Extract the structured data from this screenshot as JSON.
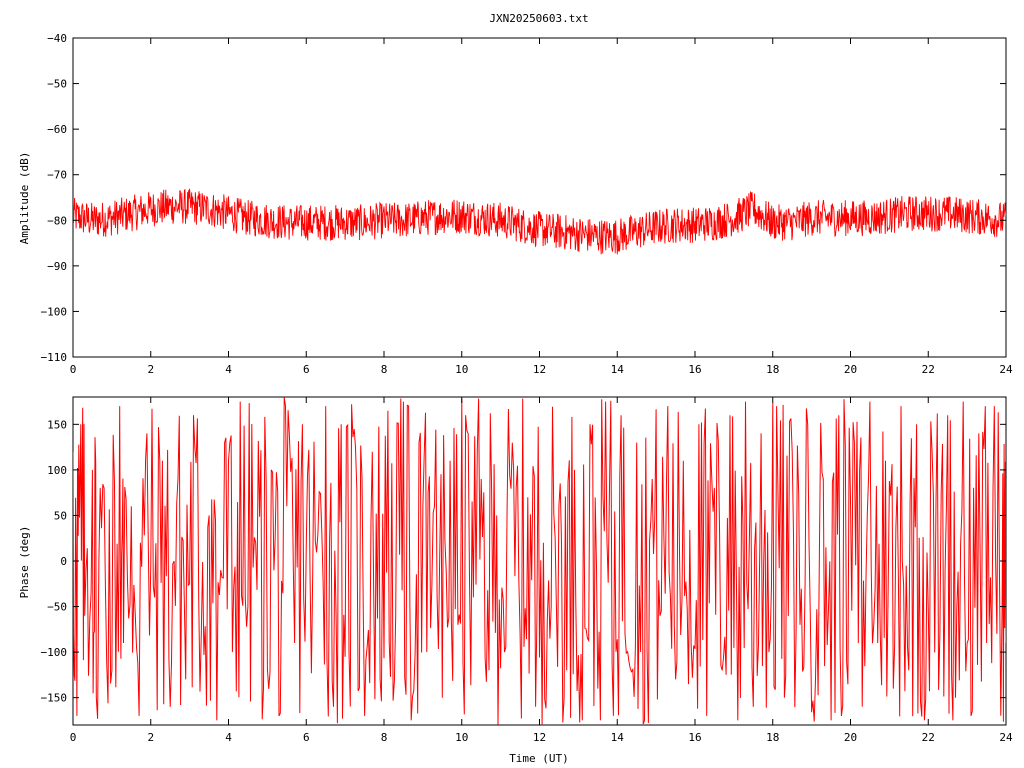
{
  "chart_data": [
    {
      "type": "line",
      "title": "JXN20250603.txt",
      "xlabel": "",
      "ylabel": "Amplitude (dB)",
      "xlim": [
        0,
        24
      ],
      "ylim": [
        -110,
        -40
      ],
      "x_ticks": [
        "0",
        "2",
        "4",
        "6",
        "8",
        "10",
        "12",
        "14",
        "16",
        "18",
        "20",
        "22",
        "24"
      ],
      "y_ticks": [
        "-40",
        "-50",
        "-60",
        "-70",
        "-80",
        "-90",
        "-100",
        "-110"
      ],
      "color": "#ff0000",
      "grid": false,
      "series": [
        {
          "name": "",
          "x": [
            0,
            0.5,
            1,
            1.5,
            2,
            2.5,
            3,
            3.5,
            4,
            4.5,
            5,
            5.5,
            6,
            6.5,
            7,
            7.5,
            8,
            8.5,
            9,
            9.5,
            10,
            10.5,
            11,
            11.5,
            12,
            12.5,
            13,
            13.5,
            14,
            14.5,
            15,
            15.5,
            16,
            16.5,
            17,
            17.5,
            18,
            18.5,
            19,
            19.5,
            20,
            20.5,
            21,
            21.5,
            22,
            22.5,
            23,
            23.5,
            24
          ],
          "y": [
            -79,
            -80,
            -79.5,
            -78.5,
            -77.5,
            -77,
            -77,
            -77.5,
            -78.5,
            -79.5,
            -80,
            -80.5,
            -80.5,
            -80.5,
            -80.5,
            -80.5,
            -80,
            -80,
            -79.5,
            -79,
            -79,
            -79.5,
            -80,
            -81,
            -82,
            -82.5,
            -83,
            -83.5,
            -83.5,
            -82.5,
            -81.5,
            -81,
            -81,
            -80.5,
            -79.5,
            -77.5,
            -80.5,
            -80.5,
            -79.5,
            -79.5,
            -79.5,
            -79.5,
            -79,
            -78.5,
            -78.5,
            -78.5,
            -79,
            -79.5,
            -80
          ]
        }
      ]
    },
    {
      "type": "line",
      "title": "",
      "xlabel": "Time (UT)",
      "ylabel": "Phase (deg)",
      "xlim": [
        0,
        24
      ],
      "ylim": [
        -180,
        180
      ],
      "x_ticks": [
        "0",
        "2",
        "4",
        "6",
        "8",
        "10",
        "12",
        "14",
        "16",
        "18",
        "20",
        "22",
        "24"
      ],
      "y_ticks": [
        "150",
        "100",
        "50",
        "0",
        "-50",
        "-100",
        "-150"
      ],
      "color": "#ff0000",
      "grid": false,
      "series": [
        {
          "name": "",
          "x": [
            0,
            0.1,
            0.2,
            0.3,
            0.5,
            0.6,
            0.8,
            1.0,
            1.2,
            1.3,
            1.5,
            1.7,
            1.9,
            2.1,
            2.3,
            2.5,
            2.7,
            2.9,
            3.1,
            3.3,
            3.5,
            3.7,
            3.9,
            4.1,
            4.3,
            4.5,
            4.7,
            4.9,
            5.1,
            5.3,
            5.5,
            5.7,
            5.9,
            6.1,
            6.3,
            6.5,
            6.7,
            6.9,
            7.1,
            7.3,
            7.5,
            7.7,
            7.9,
            8.1,
            8.3,
            8.5,
            8.7,
            8.9,
            9.1,
            9.3,
            9.5,
            9.7,
            9.9,
            10.1,
            10.3,
            10.5,
            10.7,
            10.9,
            11.1,
            11.3,
            11.5,
            11.7,
            11.9,
            12.1,
            12.3,
            12.5,
            12.7,
            12.9,
            13.1,
            13.3,
            13.5,
            13.7,
            13.9,
            14.1,
            14.3,
            14.5,
            14.7,
            14.9,
            15.1,
            15.3,
            15.5,
            15.7,
            15.9,
            16.1,
            16.3,
            16.5,
            16.7,
            16.9,
            17.1,
            17.3,
            17.5,
            17.7,
            17.9,
            18.1,
            18.3,
            18.5,
            18.7,
            18.9,
            19.1,
            19.3,
            19.5,
            19.7,
            19.9,
            20.1,
            20.3,
            20.5,
            20.7,
            20.9,
            21.1,
            21.3,
            21.5,
            21.7,
            21.9,
            22.1,
            22.3,
            22.5,
            22.7,
            22.9,
            23.1,
            23.3,
            23.5,
            23.7,
            23.9,
            24.0
          ],
          "y": [
            120,
            -170,
            150,
            -60,
            100,
            -150,
            80,
            -120,
            170,
            -90,
            60,
            -170,
            140,
            -40,
            110,
            -160,
            90,
            -130,
            160,
            -80,
            50,
            -175,
            130,
            -100,
            175,
            -50,
            20,
            -140,
            100,
            -170,
            60,
            -90,
            150,
            -20,
            30,
            170,
            -160,
            150,
            -100,
            80,
            -170,
            120,
            -130,
            165,
            -60,
            175,
            -175,
            130,
            -100,
            60,
            -150,
            110,
            -70,
            160,
            -40,
            90,
            -120,
            50,
            -100,
            130,
            -80,
            70,
            -160,
            20,
            -50,
            60,
            -120,
            100,
            -175,
            150,
            -140,
            175,
            -170,
            160,
            -110,
            130,
            -175,
            90,
            -60,
            170,
            -130,
            110,
            -90,
            150,
            -170,
            80,
            -120,
            160,
            -175,
            175,
            -160,
            140,
            -100,
            170,
            -150,
            120,
            -70,
            150,
            -130,
            90,
            -175,
            160,
            -110,
            130,
            -160,
            175,
            -90,
            110,
            -140,
            170,
            -120,
            150,
            -175,
            120,
            -80,
            160,
            -150,
            175,
            -170,
            140,
            -90,
            170,
            -50,
            -90
          ]
        }
      ]
    }
  ]
}
